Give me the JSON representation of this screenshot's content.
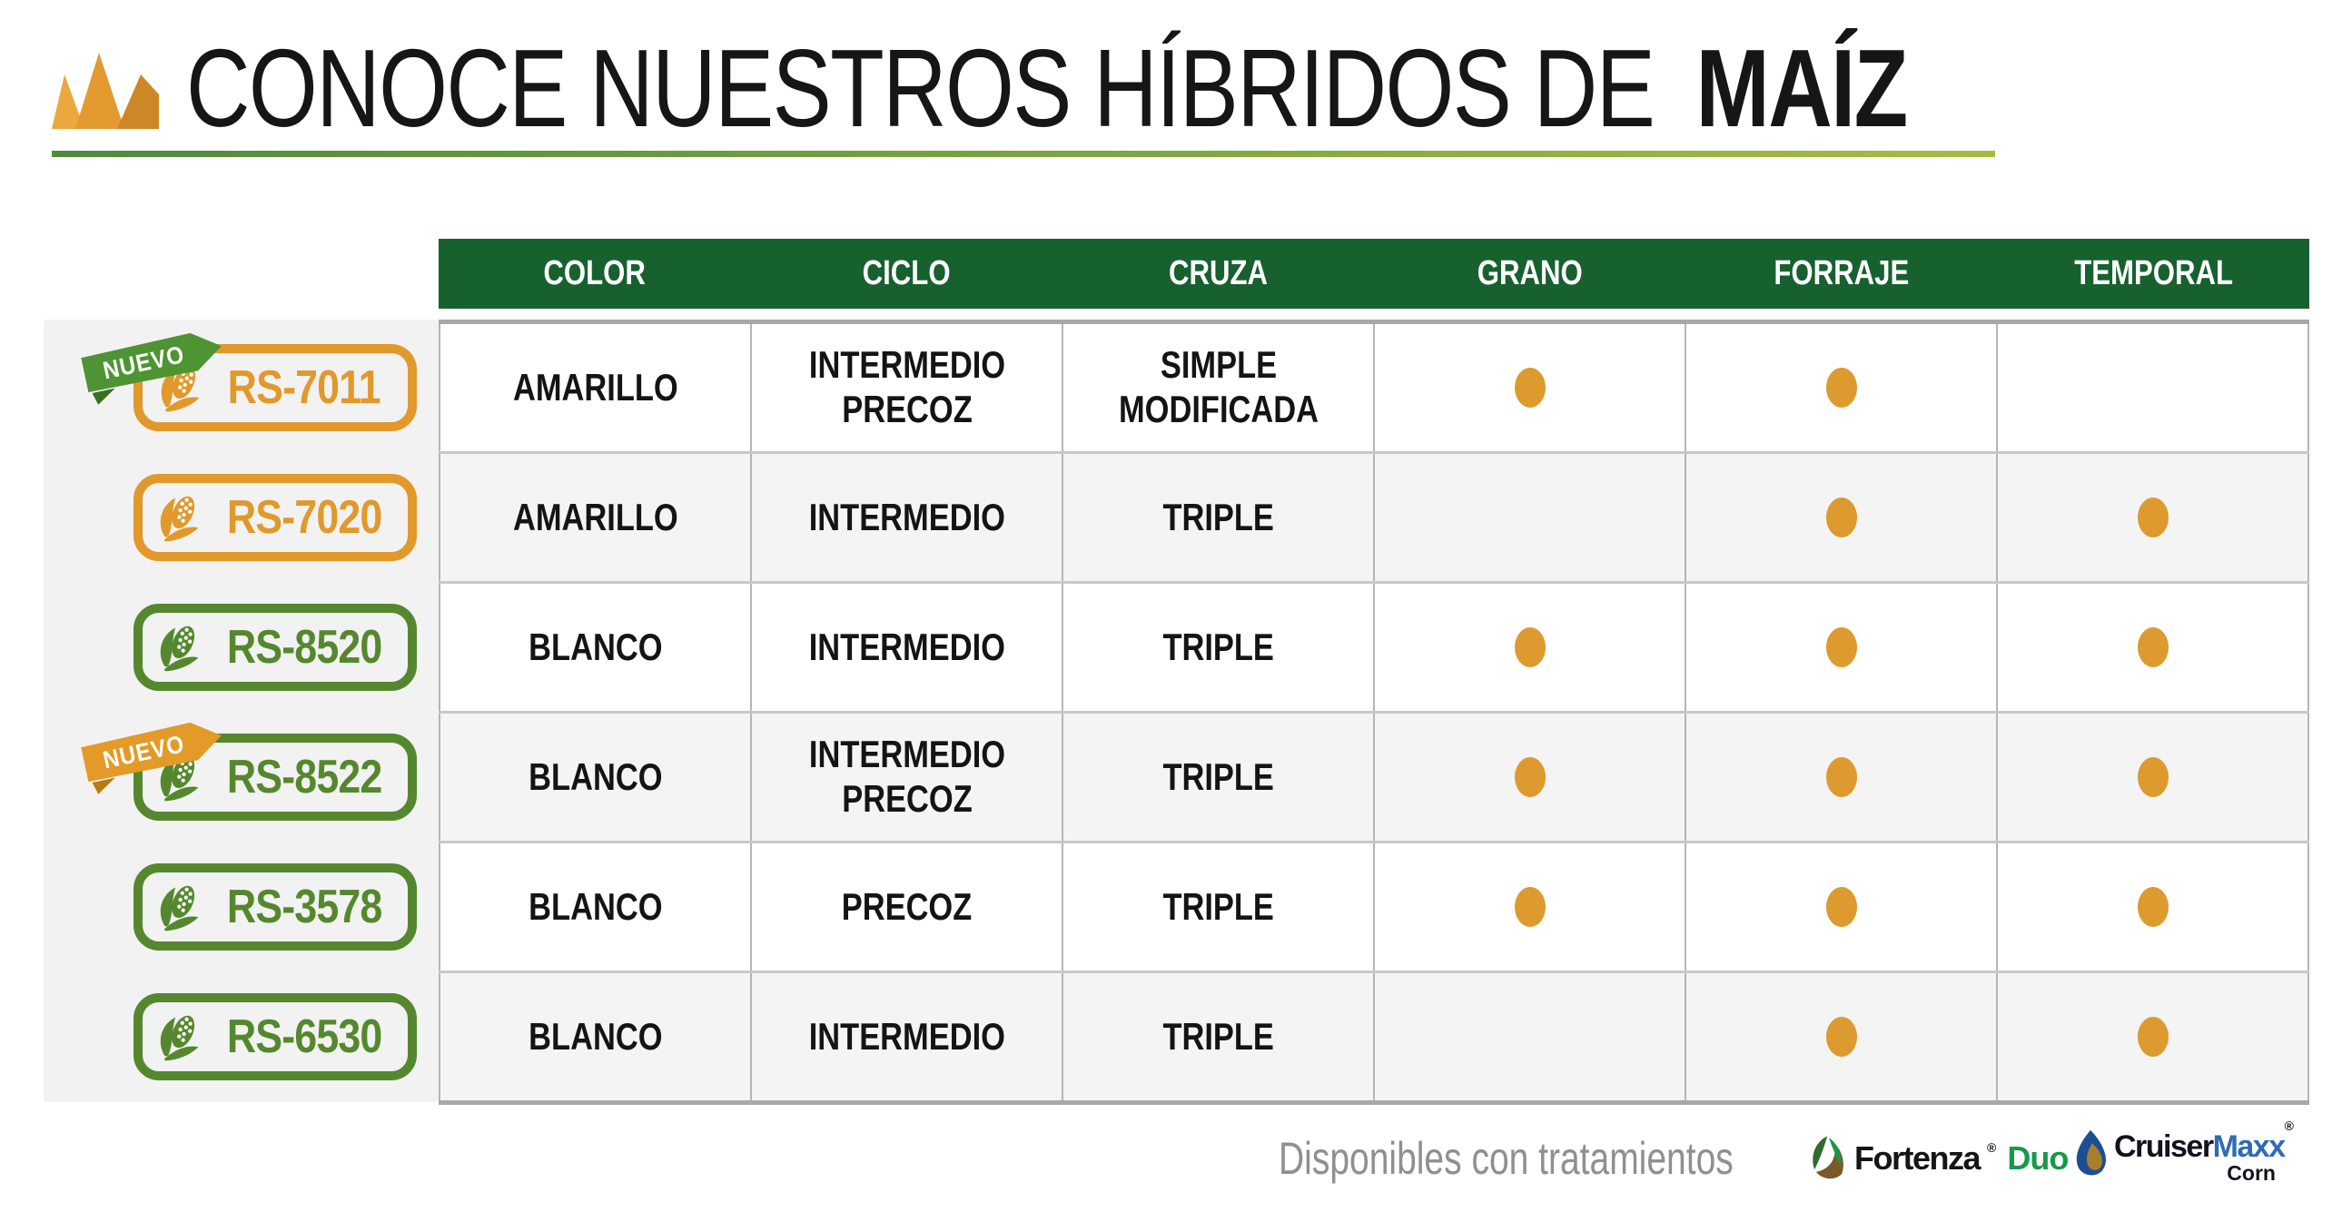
{
  "header": {
    "title_regular": "CONOCE NUESTROS HÍBRIDOS DE",
    "title_bold": "MAÍZ"
  },
  "table": {
    "columns": [
      "COLOR",
      "CICLO",
      "CRUZA",
      "GRANO",
      "FORRAJE",
      "TEMPORAL"
    ],
    "nuevo_label": "NUEVO",
    "rows": [
      {
        "id": "RS-7011",
        "nuevo": true,
        "ribbon": "green",
        "badge": "orange",
        "color": "AMARILLO",
        "ciclo": "INTERMEDIO PRECOZ",
        "cruza": "SIMPLE MODIFICADA",
        "grano": true,
        "forraje": true,
        "temporal": false
      },
      {
        "id": "RS-7020",
        "nuevo": false,
        "ribbon": null,
        "badge": "orange",
        "color": "AMARILLO",
        "ciclo": "INTERMEDIO",
        "cruza": "TRIPLE",
        "grano": false,
        "forraje": true,
        "temporal": true
      },
      {
        "id": "RS-8520",
        "nuevo": false,
        "ribbon": null,
        "badge": "green",
        "color": "BLANCO",
        "ciclo": "INTERMEDIO",
        "cruza": "TRIPLE",
        "grano": true,
        "forraje": true,
        "temporal": true
      },
      {
        "id": "RS-8522",
        "nuevo": true,
        "ribbon": "orange",
        "badge": "green",
        "color": "BLANCO",
        "ciclo": "INTERMEDIO PRECOZ",
        "cruza": "TRIPLE",
        "grano": true,
        "forraje": true,
        "temporal": true
      },
      {
        "id": "RS-3578",
        "nuevo": false,
        "ribbon": null,
        "badge": "green",
        "color": "BLANCO",
        "ciclo": "PRECOZ",
        "cruza": "TRIPLE",
        "grano": true,
        "forraje": true,
        "temporal": true
      },
      {
        "id": "RS-6530",
        "nuevo": false,
        "ribbon": null,
        "badge": "green",
        "color": "BLANCO",
        "ciclo": "INTERMEDIO",
        "cruza": "TRIPLE",
        "grano": false,
        "forraje": true,
        "temporal": true
      }
    ]
  },
  "footer": {
    "note": "Disponibles con tratamientos",
    "fortenza": {
      "name": "Fortenza",
      "reg": "®",
      "suffix": "Duo"
    },
    "cruiser": {
      "name": "Cruiser",
      "suffix": "Maxx",
      "reg": "®",
      "sub": "Corn"
    }
  },
  "colors": {
    "header_green": "#17612F",
    "badge_orange": "#E1992B",
    "badge_green": "#55882E",
    "ribbon_green": "#4E9433",
    "ribbon_green_fold": "#38701F",
    "ribbon_orange": "#E39A28",
    "ribbon_orange_fold": "#B87A14",
    "underline_from": "#4F8A3E",
    "underline_to": "#A6BC40",
    "panel_gray": "#F2F2F2",
    "row_alt": "#F4F4F4",
    "border_gray": "#B5B5B5",
    "dot_orange": "#DD9A2E",
    "footer_gray": "#8F8F8F",
    "fortenza_green": "#169A47",
    "cruiser_blue": "#2D6CB3",
    "text_black": "#141414"
  }
}
